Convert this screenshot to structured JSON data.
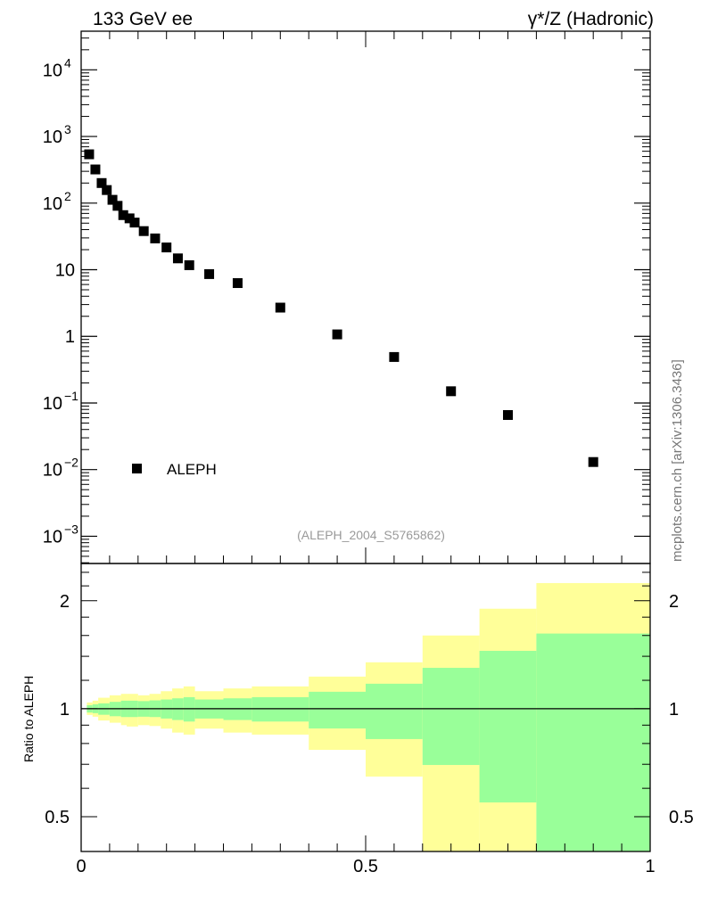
{
  "chart_data": [
    {
      "type": "scatter",
      "title_left": "133 GeV ee",
      "title_right": "γ*/Z (Hadronic)",
      "yscale": "log",
      "xlim": [
        0,
        1
      ],
      "ylim": [
        0.00039,
        38000
      ],
      "y_ticks": [
        {
          "value": 10000,
          "base": "10",
          "exp": "4"
        },
        {
          "value": 1000,
          "base": "10",
          "exp": "3"
        },
        {
          "value": 100,
          "base": "10",
          "exp": "2"
        },
        {
          "value": 10,
          "base": "10",
          "exp": ""
        },
        {
          "value": 1,
          "base": "1",
          "exp": ""
        },
        {
          "value": 0.1,
          "base": "10",
          "exp": "−1"
        },
        {
          "value": 0.01,
          "base": "10",
          "exp": "−2"
        },
        {
          "value": 0.001,
          "base": "10",
          "exp": "−3"
        }
      ],
      "legend": {
        "label": "ALEPH",
        "placement": "bottom-left"
      },
      "annotation": "(ALEPH_2004_S5765862)",
      "side_label": "mcplots.cern.ch [arXiv:1306.3436]",
      "series": [
        {
          "name": "ALEPH",
          "x": [
            0.014,
            0.025,
            0.036,
            0.045,
            0.055,
            0.064,
            0.074,
            0.085,
            0.094,
            0.11,
            0.13,
            0.15,
            0.17,
            0.19,
            0.225,
            0.275,
            0.35,
            0.45,
            0.55,
            0.65,
            0.75,
            0.9
          ],
          "y": [
            540,
            320,
            200,
            157,
            112,
            91,
            66,
            59,
            51,
            38,
            29.5,
            21.6,
            14.8,
            11.7,
            8.6,
            6.3,
            2.7,
            1.07,
            0.49,
            0.15,
            0.066,
            0.013
          ]
        }
      ]
    },
    {
      "type": "area",
      "ylabel": "Ratio to ALEPH",
      "yscale": "log",
      "xlim": [
        0,
        1
      ],
      "ylim": [
        0.4,
        2.54
      ],
      "x_ticks": [
        {
          "value": 0,
          "label": "0"
        },
        {
          "value": 0.5,
          "label": "0.5"
        },
        {
          "value": 1,
          "label": "1"
        }
      ],
      "y_ticks": [
        {
          "value": 2,
          "label": "2"
        },
        {
          "value": 1,
          "label": "1"
        },
        {
          "value": 0.5,
          "label": "0.5"
        }
      ],
      "reference_line": 1,
      "colors": {
        "outer_band": "#ffff99",
        "inner_band": "#99ff99",
        "line": "#000000",
        "marker": "#000000"
      },
      "bins": [
        {
          "lo": 0.01,
          "hi": 0.02,
          "outer": [
            0.961,
            1.041
          ],
          "inner": [
            0.976,
            1.023
          ]
        },
        {
          "lo": 0.02,
          "hi": 0.03,
          "outer": [
            0.95,
            1.053
          ],
          "inner": [
            0.972,
            1.029
          ]
        },
        {
          "lo": 0.03,
          "hi": 0.05,
          "outer": [
            0.927,
            1.073
          ],
          "inner": [
            0.962,
            1.035
          ]
        },
        {
          "lo": 0.05,
          "hi": 0.07,
          "outer": [
            0.914,
            1.09
          ],
          "inner": [
            0.953,
            1.045
          ]
        },
        {
          "lo": 0.07,
          "hi": 0.08,
          "outer": [
            0.9,
            1.1
          ],
          "inner": [
            0.948,
            1.053
          ]
        },
        {
          "lo": 0.08,
          "hi": 0.1,
          "outer": [
            0.892,
            1.1
          ],
          "inner": [
            0.948,
            1.053
          ]
        },
        {
          "lo": 0.1,
          "hi": 0.12,
          "outer": [
            0.9,
            1.09
          ],
          "inner": [
            0.95,
            1.05
          ]
        },
        {
          "lo": 0.12,
          "hi": 0.14,
          "outer": [
            0.895,
            1.1
          ],
          "inner": [
            0.948,
            1.055
          ]
        },
        {
          "lo": 0.14,
          "hi": 0.16,
          "outer": [
            0.88,
            1.119
          ],
          "inner": [
            0.939,
            1.061
          ]
        },
        {
          "lo": 0.16,
          "hi": 0.18,
          "outer": [
            0.858,
            1.139
          ],
          "inner": [
            0.93,
            1.069
          ]
        },
        {
          "lo": 0.18,
          "hi": 0.2,
          "outer": [
            0.847,
            1.154
          ],
          "inner": [
            0.921,
            1.077
          ]
        },
        {
          "lo": 0.2,
          "hi": 0.25,
          "outer": [
            0.88,
            1.119
          ],
          "inner": [
            0.939,
            1.061
          ]
        },
        {
          "lo": 0.25,
          "hi": 0.3,
          "outer": [
            0.858,
            1.139
          ],
          "inner": [
            0.93,
            1.069
          ]
        },
        {
          "lo": 0.3,
          "hi": 0.4,
          "outer": [
            0.847,
            1.154
          ],
          "inner": [
            0.921,
            1.077
          ]
        },
        {
          "lo": 0.4,
          "hi": 0.5,
          "outer": [
            0.768,
            1.229
          ],
          "inner": [
            0.881,
            1.115
          ]
        },
        {
          "lo": 0.5,
          "hi": 0.6,
          "outer": [
            0.647,
            1.347
          ],
          "inner": [
            0.823,
            1.174
          ]
        },
        {
          "lo": 0.6,
          "hi": 0.7,
          "outer": [
            0.35,
            1.6
          ],
          "inner": [
            0.697,
            1.3
          ]
        },
        {
          "lo": 0.7,
          "hi": 0.8,
          "outer": [
            0.35,
            1.9
          ],
          "inner": [
            0.548,
            1.45
          ]
        },
        {
          "lo": 0.8,
          "hi": 1.0,
          "outer": [
            0.35,
            2.24
          ],
          "inner": [
            0.35,
            1.62
          ]
        }
      ]
    }
  ]
}
